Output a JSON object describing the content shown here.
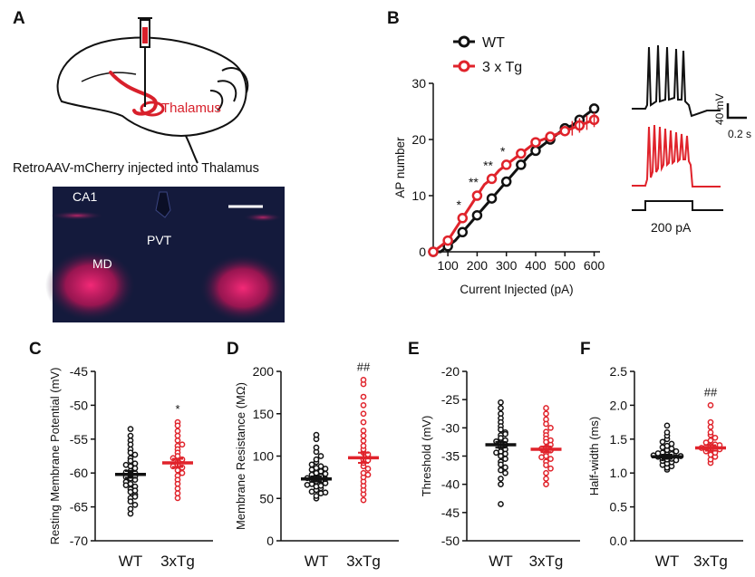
{
  "panel_labels": [
    "A",
    "B",
    "C",
    "D",
    "E",
    "F"
  ],
  "panel_a": {
    "brain_region_label": "Thalamus",
    "caption": "RetroAAV-mCherry injected into Thalamus",
    "micrograph_labels": [
      "CA1",
      "PVT",
      "MD"
    ]
  },
  "panel_b_insets": {
    "voltage_scale": "40 mV",
    "time_scale": "0.2 s",
    "current_label": "200 pA"
  },
  "colors": {
    "wt": "#111111",
    "tg": "#e0232b",
    "fluor": "#e8185c",
    "background_tissue": "#141a3c"
  },
  "chart_data": [
    {
      "id": "B",
      "type": "line",
      "xlabel": "Current Injected (pA)",
      "ylabel": "AP number",
      "xlim": [
        50,
        620
      ],
      "ylim": [
        0,
        30
      ],
      "xticks": [
        100,
        200,
        300,
        400,
        500,
        600
      ],
      "yticks": [
        0,
        10,
        20,
        30
      ],
      "x": [
        50,
        75,
        100,
        125,
        150,
        175,
        200,
        225,
        250,
        275,
        300,
        325,
        350,
        375,
        400,
        425,
        450,
        475,
        500,
        525,
        550,
        575,
        600
      ],
      "series": [
        {
          "name": "WT",
          "color": "#111111",
          "values": [
            0,
            0,
            1,
            2,
            3.5,
            5,
            6.5,
            8,
            9.5,
            11,
            12.5,
            14,
            15.5,
            17,
            18,
            19,
            20,
            21,
            22,
            22.5,
            23.5,
            24.5,
            25.5
          ]
        },
        {
          "name": "3 x Tg",
          "color": "#e0232b",
          "values": [
            0,
            1,
            2,
            4,
            6,
            8,
            10,
            12,
            13,
            14.5,
            15.5,
            16.5,
            17.5,
            18.5,
            19.5,
            20,
            20.5,
            21,
            21.5,
            22,
            22.5,
            23,
            23.5
          ]
        }
      ],
      "annotations": [
        {
          "x": 150,
          "text": "*"
        },
        {
          "x": 200,
          "text": "**"
        },
        {
          "x": 250,
          "text": "**"
        },
        {
          "x": 300,
          "text": "*"
        }
      ],
      "legend_position": "top-left"
    },
    {
      "id": "C",
      "type": "scatter",
      "ylabel": "Resting Membrane Potential (mV)",
      "ylim": [
        -70,
        -45
      ],
      "yticks": [
        -70,
        -65,
        -60,
        -55,
        -50,
        -45
      ],
      "categories": [
        "WT",
        "3xTg"
      ],
      "means": [
        -60.2,
        -58.5
      ],
      "sems": [
        0.5,
        0.6
      ],
      "annotation": {
        "group": "3xTg",
        "text": "*"
      },
      "points": [
        [
          -53.5,
          -54.5,
          -55.2,
          -55.8,
          -56.5,
          -57,
          -57.3,
          -57.8,
          -58.2,
          -58.6,
          -59,
          -59.3,
          -59.7,
          -60,
          -60.2,
          -60.5,
          -60.8,
          -61,
          -61.3,
          -61.6,
          -62,
          -62.4,
          -62.8,
          -63.2,
          -63.7,
          -64.2,
          -64.7,
          -65.3,
          -66,
          -58.8,
          -59.9,
          -60.6,
          -61.8,
          -62.6,
          -63.5
        ],
        [
          -52.5,
          -53,
          -53.8,
          -54.5,
          -55.2,
          -56,
          -56.5,
          -57,
          -57.5,
          -58,
          -58.4,
          -58.8,
          -59.2,
          -59.6,
          -60,
          -60.4,
          -61,
          -61.6,
          -62.3,
          -63,
          -63.7,
          -55.8,
          -57.8,
          -59
        ]
      ]
    },
    {
      "id": "D",
      "type": "scatter",
      "ylabel": "Membrane Resistance (MΩ)",
      "ylim": [
        0,
        200
      ],
      "yticks": [
        0,
        50,
        100,
        150,
        200
      ],
      "categories": [
        "WT",
        "3xTg"
      ],
      "means": [
        73,
        98
      ],
      "sems": [
        3,
        6
      ],
      "annotation": {
        "group": "3xTg",
        "text": "##"
      },
      "points": [
        [
          50,
          53,
          56,
          58,
          60,
          62,
          64,
          65,
          67,
          68,
          70,
          71,
          72,
          73,
          75,
          76,
          78,
          80,
          82,
          84,
          86,
          88,
          90,
          93,
          96,
          100,
          105,
          110,
          120,
          125,
          66,
          74,
          79,
          85,
          57
        ],
        [
          48,
          55,
          60,
          65,
          70,
          75,
          80,
          85,
          88,
          92,
          96,
          100,
          104,
          108,
          112,
          118,
          124,
          130,
          140,
          150,
          160,
          170,
          185,
          190,
          95,
          102,
          78
        ]
      ]
    },
    {
      "id": "E",
      "type": "scatter",
      "ylabel": "Threshold (mV)",
      "ylim": [
        -50,
        -20
      ],
      "yticks": [
        -50,
        -45,
        -40,
        -35,
        -30,
        -25,
        -20
      ],
      "categories": [
        "WT",
        "3xTg"
      ],
      "means": [
        -33,
        -33.8
      ],
      "sems": [
        0.5,
        0.5
      ],
      "points": [
        [
          -25.5,
          -26.5,
          -27.5,
          -28.3,
          -29,
          -29.7,
          -30.3,
          -30.8,
          -31.3,
          -31.8,
          -32.2,
          -32.6,
          -33,
          -33.4,
          -33.8,
          -34.2,
          -34.6,
          -35,
          -35.5,
          -36,
          -36.5,
          -37,
          -37.5,
          -38,
          -39,
          -40,
          -43.5,
          -32.4,
          -34.4,
          -31.1
        ],
        [
          -26.5,
          -27.5,
          -28.5,
          -29.3,
          -30,
          -30.7,
          -31.3,
          -31.9,
          -32.5,
          -33,
          -33.5,
          -34,
          -34.5,
          -35,
          -35.5,
          -36,
          -36.6,
          -37.2,
          -38,
          -39,
          -40,
          -33.7,
          -32.2,
          -35.2
        ]
      ]
    },
    {
      "id": "F",
      "type": "scatter",
      "ylabel": "Half-width (ms)",
      "ylim": [
        0.0,
        2.5
      ],
      "yticks": [
        0.0,
        0.5,
        1.0,
        1.5,
        2.0,
        2.5
      ],
      "tick_decimals": 1,
      "categories": [
        "WT",
        "3xTg"
      ],
      "means": [
        1.24,
        1.37
      ],
      "sems": [
        0.03,
        0.04
      ],
      "annotation": {
        "group": "3xTg",
        "text": "##"
      },
      "points": [
        [
          1.05,
          1.08,
          1.1,
          1.12,
          1.14,
          1.16,
          1.18,
          1.2,
          1.21,
          1.22,
          1.23,
          1.24,
          1.25,
          1.26,
          1.27,
          1.28,
          1.3,
          1.32,
          1.34,
          1.36,
          1.38,
          1.4,
          1.43,
          1.46,
          1.5,
          1.55,
          1.6,
          1.7,
          1.19,
          1.29
        ],
        [
          1.15,
          1.2,
          1.24,
          1.27,
          1.3,
          1.32,
          1.34,
          1.36,
          1.38,
          1.4,
          1.42,
          1.45,
          1.48,
          1.52,
          1.56,
          1.6,
          1.68,
          1.75,
          2.0,
          1.35,
          1.41,
          1.37
        ]
      ]
    }
  ]
}
